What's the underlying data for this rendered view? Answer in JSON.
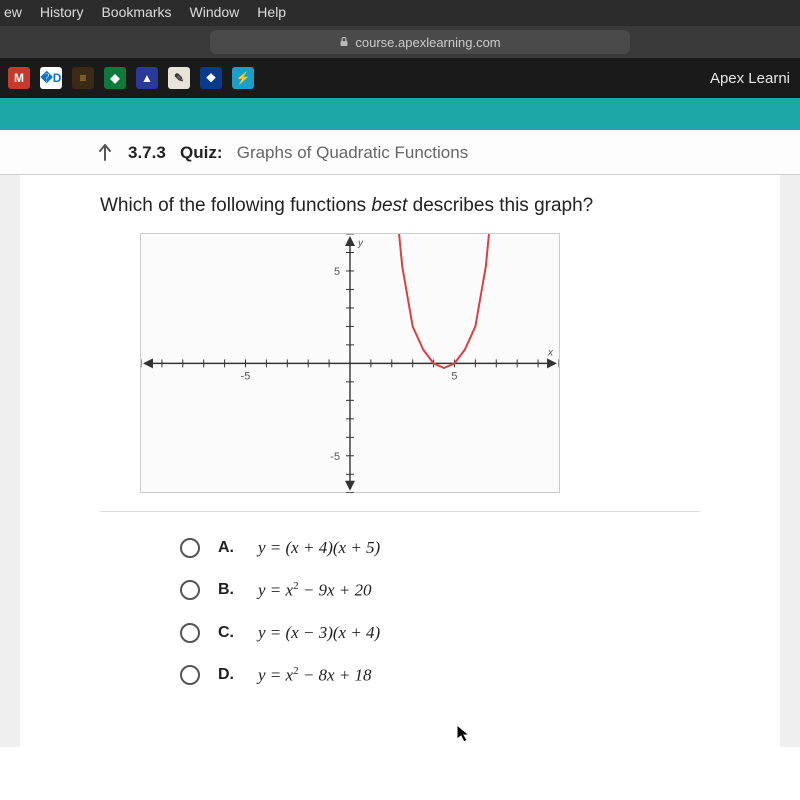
{
  "menubar": [
    "ew",
    "History",
    "Bookmarks",
    "Window",
    "Help"
  ],
  "address": {
    "host": "course.apexlearning.com"
  },
  "bookmarks": [
    {
      "bg": "#c63a2d",
      "fg": "#ffffff",
      "glyph": "M"
    },
    {
      "bg": "#ffffff",
      "fg": "#1173c7",
      "glyph": "�D"
    },
    {
      "bg": "#3b2a15",
      "fg": "#d0a040",
      "glyph": "≡"
    },
    {
      "bg": "#0d7a3c",
      "fg": "#ffffff",
      "glyph": "◆"
    },
    {
      "bg": "#2b3a9a",
      "fg": "#ffffff",
      "glyph": "▲"
    },
    {
      "bg": "#e8e3d8",
      "fg": "#333333",
      "glyph": "✎"
    },
    {
      "bg": "#0a3a8a",
      "fg": "#ffffff",
      "glyph": "❖"
    },
    {
      "bg": "#1aa0c8",
      "fg": "#ffffff",
      "glyph": "⚡"
    }
  ],
  "brand": "Apex Learni",
  "quiz": {
    "section": "3.7.3",
    "label": "Quiz:",
    "title": "Graphs of Quadratic Functions"
  },
  "question": {
    "pre": "Which of the following functions ",
    "italic": "best",
    "post": " describes this graph?"
  },
  "graph": {
    "type": "line",
    "xlim": [
      -10,
      10
    ],
    "ylim": [
      -7,
      7
    ],
    "xtick_major": [
      -5,
      5
    ],
    "ytick_major": [
      -5,
      5
    ],
    "xtick_labels": [
      "-5",
      "5"
    ],
    "ytick_labels": [
      "5",
      "-5"
    ],
    "tick_step": 1,
    "axis_color": "#333333",
    "tick_color": "#333333",
    "curve_color": "#d94040",
    "curve_width": 2,
    "background_color": "#fbfbfb",
    "axis_labels": {
      "x": "x",
      "y": "y"
    },
    "curve": {
      "description": "parabola, roots at x=4 and x=5, vertex approx (4.5, -0.25)",
      "points": [
        [
          2.35,
          7
        ],
        [
          2.5,
          5.25
        ],
        [
          3,
          2
        ],
        [
          3.5,
          0.75
        ],
        [
          4,
          0
        ],
        [
          4.5,
          -0.25
        ],
        [
          5,
          0
        ],
        [
          5.5,
          0.75
        ],
        [
          6,
          2
        ],
        [
          6.5,
          5.25
        ],
        [
          6.65,
          7
        ]
      ]
    }
  },
  "answers": [
    {
      "letter": "A.",
      "html": "y = (x + 4)(x + 5)"
    },
    {
      "letter": "B.",
      "html": "y = x<sup>2</sup> − 9x + 20"
    },
    {
      "letter": "C.",
      "html": "y = (x − 3)(x + 4)"
    },
    {
      "letter": "D.",
      "html": "y = x<sup>2</sup> − 8x + 18"
    }
  ]
}
